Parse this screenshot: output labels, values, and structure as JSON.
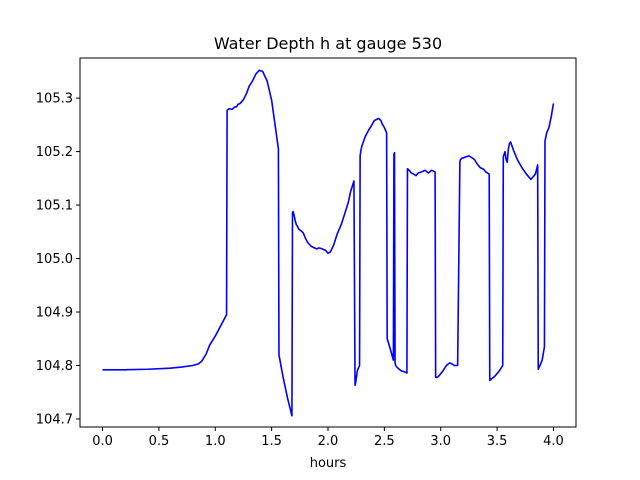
{
  "chart_data": {
    "type": "line",
    "title": "Water Depth h at gauge 530",
    "xlabel": "hours",
    "ylabel": "",
    "xlim": [
      -0.2,
      4.2
    ],
    "ylim": [
      104.685,
      105.375
    ],
    "x_ticks": [
      0.0,
      0.5,
      1.0,
      1.5,
      2.0,
      2.5,
      3.0,
      3.5,
      4.0
    ],
    "x_tick_labels": [
      "0.0",
      "0.5",
      "1.0",
      "1.5",
      "2.0",
      "2.5",
      "3.0",
      "3.5",
      "4.0"
    ],
    "y_ticks": [
      104.7,
      104.8,
      104.9,
      105.0,
      105.1,
      105.2,
      105.3
    ],
    "y_tick_labels": [
      "104.7",
      "104.8",
      "104.9",
      "105.0",
      "105.1",
      "105.2",
      "105.3"
    ],
    "grid": false,
    "series": [
      {
        "color": "#0000ff",
        "x": [
          0.0,
          0.2,
          0.4,
          0.6,
          0.7,
          0.8,
          0.85,
          0.88,
          0.92,
          0.95,
          1.0,
          1.05,
          1.1,
          1.105,
          1.12,
          1.15,
          1.17,
          1.19,
          1.2,
          1.22,
          1.25,
          1.28,
          1.3,
          1.33,
          1.36,
          1.39,
          1.42,
          1.46,
          1.5,
          1.56,
          1.565,
          1.6,
          1.64,
          1.68,
          1.685,
          1.69,
          1.7,
          1.71,
          1.72,
          1.73,
          1.74,
          1.76,
          1.78,
          1.8,
          1.82,
          1.85,
          1.88,
          1.9,
          1.92,
          1.95,
          1.98,
          2.0,
          2.02,
          2.05,
          2.08,
          2.1,
          2.12,
          2.15,
          2.18,
          2.2,
          2.23,
          2.24,
          2.245,
          2.25,
          2.26,
          2.28,
          2.285,
          2.29,
          2.3,
          2.33,
          2.36,
          2.39,
          2.41,
          2.43,
          2.45,
          2.47,
          2.48,
          2.5,
          2.51,
          2.52,
          2.525,
          2.54,
          2.56,
          2.58,
          2.585,
          2.59,
          2.595,
          2.6,
          2.62,
          2.65,
          2.68,
          2.7,
          2.705,
          2.72,
          2.74,
          2.76,
          2.78,
          2.8,
          2.83,
          2.86,
          2.89,
          2.92,
          2.95,
          2.955,
          2.97,
          2.99,
          3.02,
          3.05,
          3.08,
          3.1,
          3.12,
          3.15,
          3.17,
          3.175,
          3.19,
          3.2,
          3.22,
          3.25,
          3.28,
          3.3,
          3.32,
          3.35,
          3.38,
          3.4,
          3.43,
          3.435,
          3.45,
          3.48,
          3.52,
          3.55,
          3.555,
          3.57,
          3.58,
          3.59,
          3.6,
          3.61,
          3.62,
          3.63,
          3.65,
          3.68,
          3.72,
          3.76,
          3.8,
          3.84,
          3.86,
          3.865,
          3.87,
          3.9,
          3.92,
          3.925,
          3.94,
          3.96,
          3.98,
          4.0
        ],
        "y": [
          104.792,
          104.792,
          104.793,
          104.795,
          104.797,
          104.8,
          104.803,
          104.808,
          104.822,
          104.838,
          104.855,
          104.875,
          104.895,
          105.277,
          105.28,
          105.279,
          105.283,
          105.284,
          105.288,
          105.29,
          105.297,
          105.31,
          105.322,
          105.332,
          105.345,
          105.352,
          105.35,
          105.332,
          105.296,
          105.205,
          104.82,
          104.78,
          104.74,
          104.706,
          105.085,
          105.088,
          105.08,
          105.07,
          105.063,
          105.06,
          105.055,
          105.052,
          105.048,
          105.038,
          105.03,
          105.023,
          105.02,
          105.018,
          105.02,
          105.018,
          105.015,
          105.01,
          105.012,
          105.025,
          105.045,
          105.055,
          105.065,
          105.085,
          105.105,
          105.125,
          105.145,
          104.763,
          104.768,
          104.775,
          104.79,
          104.8,
          105.192,
          105.2,
          105.21,
          105.228,
          105.24,
          105.25,
          105.258,
          105.26,
          105.262,
          105.258,
          105.252,
          105.245,
          105.24,
          105.235,
          104.85,
          104.84,
          104.825,
          104.81,
          105.195,
          105.198,
          104.805,
          104.8,
          104.795,
          104.79,
          104.788,
          104.786,
          105.168,
          105.165,
          105.16,
          105.158,
          105.155,
          105.16,
          105.162,
          105.165,
          105.16,
          105.165,
          105.162,
          104.778,
          104.778,
          104.782,
          104.79,
          104.8,
          104.805,
          104.803,
          104.8,
          104.8,
          105.18,
          105.185,
          105.188,
          105.188,
          105.19,
          105.192,
          105.188,
          105.185,
          105.178,
          105.17,
          105.167,
          105.162,
          105.158,
          104.772,
          104.775,
          104.78,
          104.79,
          104.8,
          105.19,
          105.2,
          105.185,
          105.18,
          105.205,
          105.215,
          105.218,
          105.212,
          105.2,
          105.185,
          105.17,
          105.158,
          105.148,
          105.158,
          105.175,
          104.793,
          104.795,
          104.81,
          104.835,
          105.22,
          105.235,
          105.245,
          105.265,
          105.29
        ]
      }
    ]
  }
}
